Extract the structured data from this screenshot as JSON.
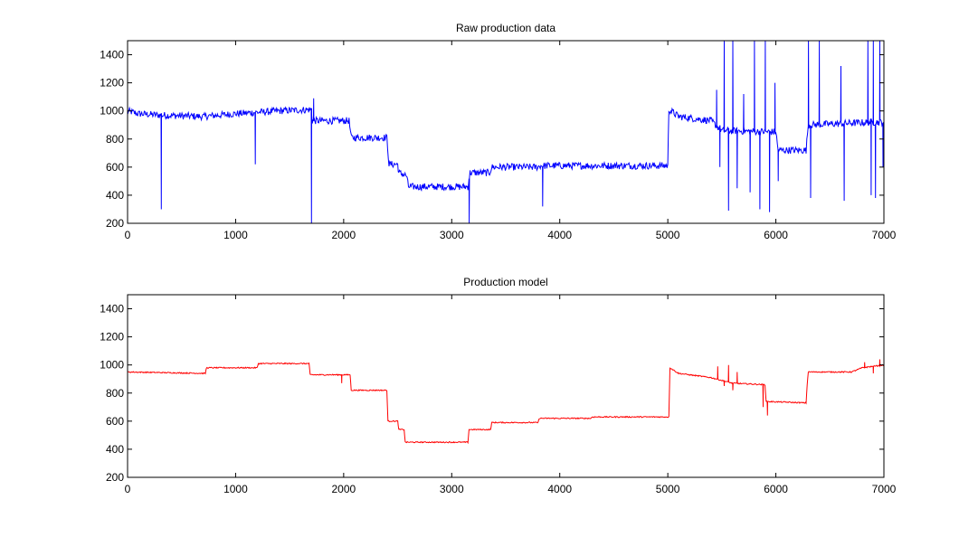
{
  "chart_data": [
    {
      "type": "line",
      "title": "Raw production data",
      "xlabel": "",
      "ylabel": "",
      "xlim": [
        0,
        7000
      ],
      "ylim": [
        200,
        1500
      ],
      "xticks": [
        0,
        1000,
        2000,
        3000,
        4000,
        5000,
        6000,
        7000
      ],
      "yticks": [
        200,
        400,
        600,
        800,
        1000,
        1200,
        1400
      ],
      "grid": false,
      "color": "#0000ff",
      "series": [
        {
          "segments": [
            [
              0,
              1000
            ],
            [
              100,
              980
            ],
            [
              300,
              970
            ],
            [
              700,
              960
            ],
            [
              1000,
              980
            ],
            [
              1200,
              990
            ],
            [
              1400,
              1000
            ],
            [
              1700,
              1010
            ],
            [
              1710,
              930
            ],
            [
              2050,
              930
            ],
            [
              2070,
              810
            ],
            [
              2400,
              810
            ],
            [
              2420,
              620
            ],
            [
              2500,
              620
            ],
            [
              2510,
              560
            ],
            [
              2580,
              540
            ],
            [
              2600,
              460
            ],
            [
              3150,
              460
            ],
            [
              3170,
              560
            ],
            [
              3350,
              560
            ],
            [
              3370,
              600
            ],
            [
              3800,
              600
            ],
            [
              3820,
              610
            ],
            [
              5000,
              610
            ],
            [
              5010,
              1010
            ],
            [
              5100,
              960
            ],
            [
              5300,
              940
            ],
            [
              5400,
              930
            ],
            [
              5500,
              860
            ],
            [
              6000,
              850
            ],
            [
              6020,
              720
            ],
            [
              6280,
              720
            ],
            [
              6300,
              900
            ],
            [
              6900,
              920
            ],
            [
              7000,
              920
            ]
          ],
          "spikes": [
            [
              310,
              300
            ],
            [
              1180,
              620
            ],
            [
              1700,
              200
            ],
            [
              1720,
              1090
            ],
            [
              3160,
              200
            ],
            [
              3840,
              320
            ],
            [
              5450,
              1150
            ],
            [
              5480,
              600
            ],
            [
              5520,
              1500
            ],
            [
              5560,
              290
            ],
            [
              5600,
              1500
            ],
            [
              5640,
              450
            ],
            [
              5700,
              1120
            ],
            [
              5760,
              420
            ],
            [
              5800,
              1500
            ],
            [
              5850,
              300
            ],
            [
              5900,
              1500
            ],
            [
              5940,
              280
            ],
            [
              5990,
              1200
            ],
            [
              6020,
              500
            ],
            [
              6300,
              1500
            ],
            [
              6320,
              380
            ],
            [
              6400,
              1500
            ],
            [
              6600,
              1320
            ],
            [
              6630,
              360
            ],
            [
              6850,
              1500
            ],
            [
              6880,
              400
            ],
            [
              6900,
              1500
            ],
            [
              6920,
              380
            ],
            [
              6960,
              1500
            ],
            [
              6990,
              600
            ]
          ],
          "noise": 50
        }
      ]
    },
    {
      "type": "line",
      "title": "Production model",
      "xlabel": "",
      "ylabel": "",
      "xlim": [
        0,
        7000
      ],
      "ylim": [
        200,
        1500
      ],
      "xticks": [
        0,
        1000,
        2000,
        3000,
        4000,
        5000,
        6000,
        7000
      ],
      "yticks": [
        200,
        400,
        600,
        800,
        1000,
        1200,
        1400
      ],
      "grid": false,
      "color": "#ff0000",
      "series": [
        {
          "segments": [
            [
              0,
              950
            ],
            [
              720,
              940
            ],
            [
              730,
              980
            ],
            [
              1200,
              980
            ],
            [
              1210,
              1010
            ],
            [
              1680,
              1010
            ],
            [
              1690,
              930
            ],
            [
              2060,
              930
            ],
            [
              2070,
              820
            ],
            [
              2400,
              820
            ],
            [
              2410,
              600
            ],
            [
              2500,
              600
            ],
            [
              2510,
              540
            ],
            [
              2560,
              540
            ],
            [
              2570,
              450
            ],
            [
              3150,
              450
            ],
            [
              3160,
              540
            ],
            [
              3360,
              540
            ],
            [
              3370,
              590
            ],
            [
              3800,
              590
            ],
            [
              3810,
              620
            ],
            [
              4290,
              620
            ],
            [
              4300,
              630
            ],
            [
              5010,
              630
            ],
            [
              5020,
              980
            ],
            [
              5100,
              940
            ],
            [
              5300,
              920
            ],
            [
              5400,
              910
            ],
            [
              5600,
              870
            ],
            [
              5900,
              860
            ],
            [
              5910,
              740
            ],
            [
              6280,
              730
            ],
            [
              6290,
              860
            ],
            [
              6300,
              950
            ],
            [
              6700,
              950
            ],
            [
              6800,
              980
            ],
            [
              7000,
              1000
            ]
          ],
          "spikes": [
            [
              1980,
              870
            ],
            [
              5460,
              990
            ],
            [
              5520,
              850
            ],
            [
              5560,
              1000
            ],
            [
              5600,
              820
            ],
            [
              5640,
              950
            ],
            [
              5880,
              700
            ],
            [
              5920,
              640
            ],
            [
              6820,
              1020
            ],
            [
              6900,
              940
            ],
            [
              6960,
              1040
            ]
          ],
          "noise": 8
        }
      ]
    }
  ]
}
